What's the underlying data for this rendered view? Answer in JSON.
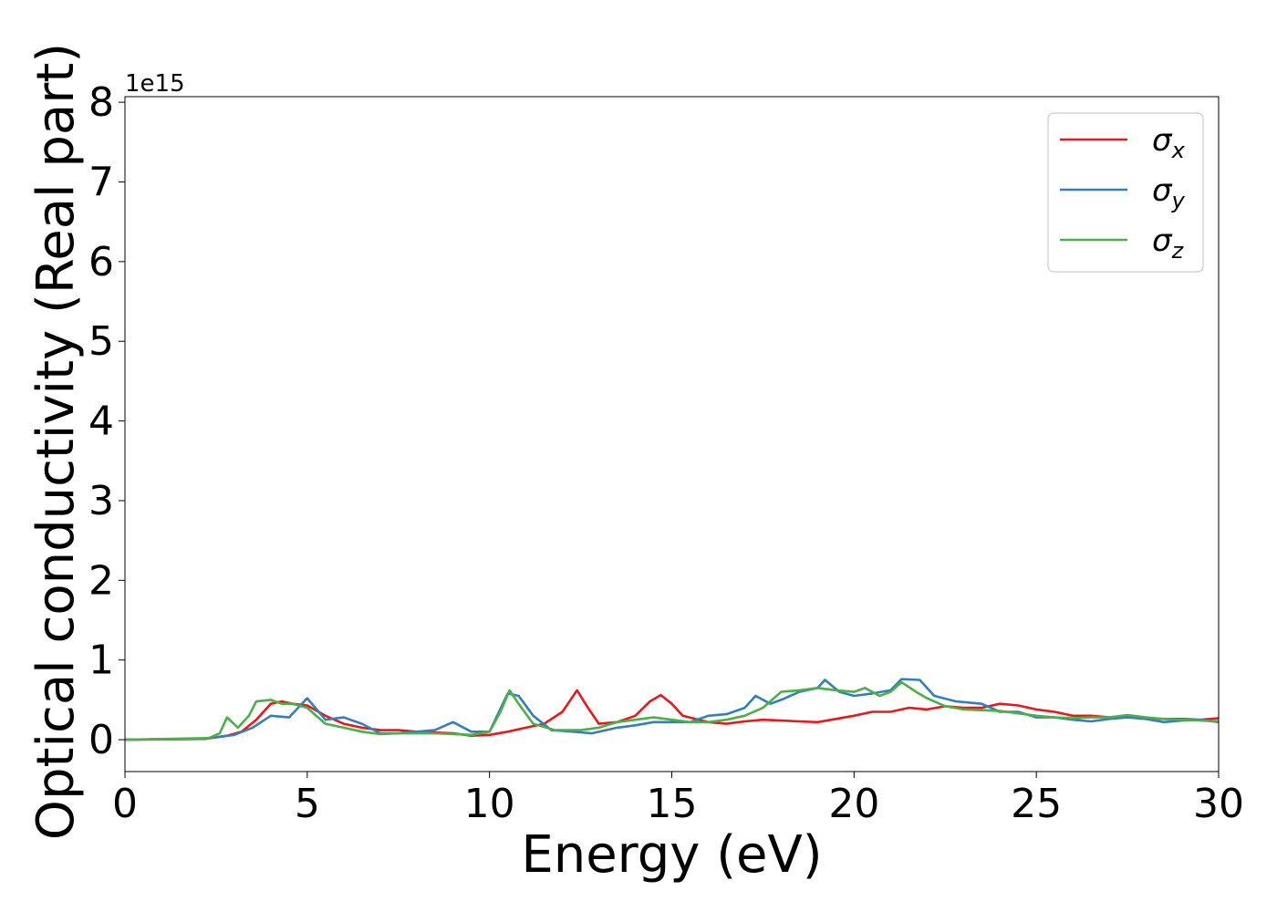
{
  "chart_data": {
    "type": "line",
    "xlabel": "Energy (eV)",
    "ylabel": "Optical conductivity (Real part)",
    "y_offset_label": "1e15",
    "y_scale_factor": 1000000000000000.0,
    "xlim": [
      0,
      30
    ],
    "ylim": [
      -0.4,
      8.07
    ],
    "x_ticks": [
      0,
      5,
      10,
      15,
      20,
      25,
      30
    ],
    "y_ticks": [
      0,
      1,
      2,
      3,
      4,
      5,
      6,
      7,
      8
    ],
    "grid": false,
    "legend_position": "top-right",
    "series": [
      {
        "name": "σ_x",
        "legend_symbol": "σ",
        "legend_sub": "x",
        "color": "#e41a1c",
        "points": [
          [
            0,
            0
          ],
          [
            2.2,
            0.01
          ],
          [
            2.8,
            0.05
          ],
          [
            3.2,
            0.1
          ],
          [
            3.6,
            0.25
          ],
          [
            4.0,
            0.45
          ],
          [
            4.3,
            0.48
          ],
          [
            4.6,
            0.45
          ],
          [
            5.0,
            0.43
          ],
          [
            5.5,
            0.3
          ],
          [
            6.0,
            0.2
          ],
          [
            6.5,
            0.15
          ],
          [
            7.0,
            0.12
          ],
          [
            7.5,
            0.12
          ],
          [
            8.0,
            0.1
          ],
          [
            8.5,
            0.09
          ],
          [
            9.0,
            0.08
          ],
          [
            9.5,
            0.05
          ],
          [
            10.0,
            0.06
          ],
          [
            10.5,
            0.1
          ],
          [
            11.0,
            0.15
          ],
          [
            11.5,
            0.2
          ],
          [
            12.0,
            0.35
          ],
          [
            12.4,
            0.62
          ],
          [
            12.7,
            0.4
          ],
          [
            13.0,
            0.2
          ],
          [
            13.5,
            0.22
          ],
          [
            14.0,
            0.3
          ],
          [
            14.4,
            0.48
          ],
          [
            14.7,
            0.56
          ],
          [
            15.0,
            0.45
          ],
          [
            15.3,
            0.3
          ],
          [
            16.0,
            0.22
          ],
          [
            16.5,
            0.2
          ],
          [
            17.0,
            0.23
          ],
          [
            17.5,
            0.25
          ],
          [
            18.0,
            0.24
          ],
          [
            18.5,
            0.23
          ],
          [
            19.0,
            0.22
          ],
          [
            19.5,
            0.26
          ],
          [
            20.0,
            0.3
          ],
          [
            20.5,
            0.35
          ],
          [
            21.0,
            0.35
          ],
          [
            21.5,
            0.4
          ],
          [
            22.0,
            0.38
          ],
          [
            22.5,
            0.42
          ],
          [
            23.0,
            0.4
          ],
          [
            23.5,
            0.4
          ],
          [
            24.0,
            0.45
          ],
          [
            24.5,
            0.43
          ],
          [
            25.0,
            0.38
          ],
          [
            25.5,
            0.35
          ],
          [
            26.0,
            0.3
          ],
          [
            26.5,
            0.3
          ],
          [
            27.0,
            0.28
          ],
          [
            27.5,
            0.3
          ],
          [
            28.0,
            0.27
          ],
          [
            28.5,
            0.26
          ],
          [
            29.0,
            0.26
          ],
          [
            29.5,
            0.25
          ],
          [
            30.0,
            0.27
          ]
        ]
      },
      {
        "name": "σ_y",
        "legend_symbol": "σ",
        "legend_sub": "y",
        "color": "#377eb8",
        "points": [
          [
            0,
            0
          ],
          [
            2.0,
            0.01
          ],
          [
            2.5,
            0.03
          ],
          [
            3.0,
            0.06
          ],
          [
            3.5,
            0.15
          ],
          [
            4.0,
            0.3
          ],
          [
            4.5,
            0.28
          ],
          [
            5.0,
            0.52
          ],
          [
            5.5,
            0.25
          ],
          [
            6.0,
            0.28
          ],
          [
            6.5,
            0.2
          ],
          [
            7.0,
            0.08
          ],
          [
            7.5,
            0.08
          ],
          [
            8.0,
            0.1
          ],
          [
            8.5,
            0.12
          ],
          [
            9.0,
            0.22
          ],
          [
            9.5,
            0.1
          ],
          [
            10.0,
            0.1
          ],
          [
            10.5,
            0.58
          ],
          [
            10.8,
            0.55
          ],
          [
            11.2,
            0.3
          ],
          [
            11.7,
            0.12
          ],
          [
            12.3,
            0.1
          ],
          [
            12.8,
            0.08
          ],
          [
            13.5,
            0.15
          ],
          [
            14.0,
            0.18
          ],
          [
            14.5,
            0.22
          ],
          [
            15.0,
            0.22
          ],
          [
            15.5,
            0.22
          ],
          [
            16.0,
            0.3
          ],
          [
            16.5,
            0.32
          ],
          [
            17.0,
            0.4
          ],
          [
            17.3,
            0.55
          ],
          [
            17.7,
            0.45
          ],
          [
            18.0,
            0.5
          ],
          [
            18.5,
            0.6
          ],
          [
            19.0,
            0.65
          ],
          [
            19.2,
            0.75
          ],
          [
            19.6,
            0.6
          ],
          [
            20.0,
            0.55
          ],
          [
            20.5,
            0.58
          ],
          [
            21.0,
            0.62
          ],
          [
            21.3,
            0.76
          ],
          [
            21.8,
            0.75
          ],
          [
            22.2,
            0.55
          ],
          [
            22.8,
            0.48
          ],
          [
            23.5,
            0.45
          ],
          [
            24.0,
            0.35
          ],
          [
            24.5,
            0.35
          ],
          [
            25.0,
            0.28
          ],
          [
            25.5,
            0.28
          ],
          [
            26.0,
            0.25
          ],
          [
            26.5,
            0.23
          ],
          [
            27.0,
            0.26
          ],
          [
            27.5,
            0.28
          ],
          [
            28.0,
            0.26
          ],
          [
            28.5,
            0.22
          ],
          [
            29.0,
            0.24
          ],
          [
            29.5,
            0.25
          ],
          [
            30.0,
            0.22
          ]
        ]
      },
      {
        "name": "σ_z",
        "legend_symbol": "σ",
        "legend_sub": "z",
        "color": "#4daf4a",
        "points": [
          [
            0,
            0
          ],
          [
            2.3,
            0.02
          ],
          [
            2.6,
            0.08
          ],
          [
            2.8,
            0.28
          ],
          [
            3.1,
            0.15
          ],
          [
            3.4,
            0.3
          ],
          [
            3.6,
            0.48
          ],
          [
            4.0,
            0.5
          ],
          [
            4.3,
            0.45
          ],
          [
            4.6,
            0.45
          ],
          [
            5.0,
            0.4
          ],
          [
            5.5,
            0.2
          ],
          [
            6.0,
            0.15
          ],
          [
            6.5,
            0.1
          ],
          [
            7.0,
            0.07
          ],
          [
            7.5,
            0.08
          ],
          [
            8.0,
            0.08
          ],
          [
            8.5,
            0.08
          ],
          [
            9.0,
            0.07
          ],
          [
            9.5,
            0.06
          ],
          [
            10.0,
            0.1
          ],
          [
            10.3,
            0.35
          ],
          [
            10.55,
            0.62
          ],
          [
            10.8,
            0.45
          ],
          [
            11.2,
            0.2
          ],
          [
            11.8,
            0.12
          ],
          [
            12.5,
            0.12
          ],
          [
            13.0,
            0.15
          ],
          [
            13.5,
            0.22
          ],
          [
            14.0,
            0.25
          ],
          [
            14.5,
            0.28
          ],
          [
            15.0,
            0.25
          ],
          [
            15.5,
            0.22
          ],
          [
            16.0,
            0.22
          ],
          [
            16.5,
            0.25
          ],
          [
            17.0,
            0.3
          ],
          [
            17.5,
            0.4
          ],
          [
            18.0,
            0.6
          ],
          [
            18.5,
            0.62
          ],
          [
            19.0,
            0.65
          ],
          [
            19.5,
            0.62
          ],
          [
            20.0,
            0.6
          ],
          [
            20.3,
            0.65
          ],
          [
            20.7,
            0.55
          ],
          [
            21.0,
            0.6
          ],
          [
            21.3,
            0.72
          ],
          [
            21.7,
            0.6
          ],
          [
            22.0,
            0.52
          ],
          [
            22.5,
            0.42
          ],
          [
            23.0,
            0.38
          ],
          [
            23.5,
            0.37
          ],
          [
            24.0,
            0.36
          ],
          [
            24.5,
            0.33
          ],
          [
            25.0,
            0.3
          ],
          [
            25.5,
            0.28
          ],
          [
            26.0,
            0.27
          ],
          [
            26.5,
            0.28
          ],
          [
            27.0,
            0.28
          ],
          [
            27.5,
            0.31
          ],
          [
            28.0,
            0.28
          ],
          [
            28.5,
            0.26
          ],
          [
            29.0,
            0.25
          ],
          [
            29.5,
            0.24
          ],
          [
            30.0,
            0.23
          ]
        ]
      }
    ]
  }
}
